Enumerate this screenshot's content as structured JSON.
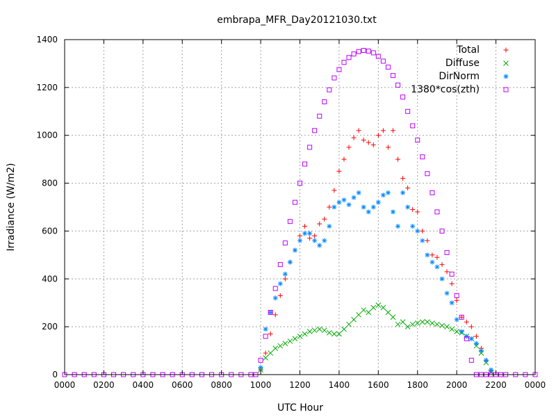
{
  "chart_data": {
    "type": "scatter",
    "title": "embrapa_MFR_Day20121030.txt",
    "xlabel": "UTC Hour",
    "ylabel": "Irradiance (W/m2)",
    "xlim": [
      0,
      24
    ],
    "ylim": [
      0,
      1400
    ],
    "x_ticks": [
      {
        "value": 0,
        "label": "0000"
      },
      {
        "value": 2,
        "label": "0200"
      },
      {
        "value": 4,
        "label": "0400"
      },
      {
        "value": 6,
        "label": "0600"
      },
      {
        "value": 8,
        "label": "0800"
      },
      {
        "value": 10,
        "label": "1000"
      },
      {
        "value": 12,
        "label": "1200"
      },
      {
        "value": 14,
        "label": "1400"
      },
      {
        "value": 16,
        "label": "1600"
      },
      {
        "value": 18,
        "label": "1800"
      },
      {
        "value": 20,
        "label": "2000"
      },
      {
        "value": 22,
        "label": "2200"
      },
      {
        "value": 24,
        "label": "0000"
      }
    ],
    "y_ticks": [
      0,
      200,
      400,
      600,
      800,
      1000,
      1200,
      1400
    ],
    "grid": true,
    "legend_position": "top-right",
    "series": [
      {
        "name": "Total",
        "marker": "plus",
        "color": "#ff0000",
        "x": [
          10.0,
          10.25,
          10.5,
          10.75,
          11.0,
          11.25,
          11.5,
          11.75,
          12.0,
          12.25,
          12.5,
          12.75,
          13.0,
          13.25,
          13.5,
          13.75,
          14.0,
          14.25,
          14.5,
          14.75,
          15.0,
          15.25,
          15.5,
          15.75,
          16.0,
          16.25,
          16.5,
          16.75,
          17.0,
          17.25,
          17.5,
          17.75,
          18.0,
          18.25,
          18.5,
          18.75,
          19.0,
          19.25,
          19.5,
          19.75,
          20.0,
          20.25,
          20.5,
          20.75,
          21.0,
          21.25,
          21.5,
          21.75
        ],
        "y": [
          20,
          90,
          170,
          250,
          330,
          400,
          470,
          520,
          580,
          620,
          570,
          580,
          630,
          650,
          700,
          770,
          850,
          900,
          950,
          990,
          1020,
          980,
          970,
          960,
          1000,
          1020,
          950,
          1020,
          900,
          820,
          780,
          690,
          680,
          600,
          560,
          500,
          490,
          460,
          430,
          380,
          310,
          240,
          220,
          200,
          160,
          110,
          60,
          15
        ]
      },
      {
        "name": "Diffuse",
        "marker": "cross",
        "color": "#00aa00",
        "x": [
          10.0,
          10.25,
          10.5,
          10.75,
          11.0,
          11.25,
          11.5,
          11.75,
          12.0,
          12.25,
          12.5,
          12.75,
          13.0,
          13.25,
          13.5,
          13.75,
          14.0,
          14.25,
          14.5,
          14.75,
          15.0,
          15.25,
          15.5,
          15.75,
          16.0,
          16.25,
          16.5,
          16.75,
          17.0,
          17.25,
          17.5,
          17.75,
          18.0,
          18.25,
          18.5,
          18.75,
          19.0,
          19.25,
          19.5,
          19.75,
          20.0,
          20.25,
          20.5,
          20.75,
          21.0,
          21.25,
          21.5,
          21.75
        ],
        "y": [
          20,
          70,
          90,
          110,
          120,
          130,
          140,
          150,
          160,
          170,
          180,
          185,
          190,
          185,
          175,
          170,
          170,
          190,
          210,
          230,
          250,
          270,
          260,
          280,
          290,
          280,
          260,
          240,
          210,
          220,
          200,
          210,
          215,
          220,
          220,
          215,
          210,
          205,
          200,
          190,
          180,
          175,
          160,
          150,
          120,
          90,
          50,
          10
        ]
      },
      {
        "name": "DirNorm",
        "marker": "star",
        "color": "#0088ff",
        "x": [
          10.0,
          10.25,
          10.5,
          10.75,
          11.0,
          11.25,
          11.5,
          11.75,
          12.0,
          12.25,
          12.5,
          12.75,
          13.0,
          13.25,
          13.5,
          13.75,
          14.0,
          14.25,
          14.5,
          14.75,
          15.0,
          15.25,
          15.5,
          15.75,
          16.0,
          16.25,
          16.5,
          16.75,
          17.0,
          17.25,
          17.5,
          17.75,
          18.0,
          18.25,
          18.5,
          18.75,
          19.0,
          19.25,
          19.5,
          19.75,
          20.0,
          20.25,
          20.5,
          20.75,
          21.0,
          21.25,
          21.5,
          21.75
        ],
        "y": [
          30,
          190,
          260,
          320,
          380,
          420,
          470,
          520,
          560,
          590,
          590,
          560,
          540,
          560,
          620,
          700,
          720,
          730,
          710,
          740,
          760,
          700,
          680,
          700,
          720,
          750,
          760,
          680,
          620,
          760,
          700,
          620,
          600,
          560,
          500,
          470,
          450,
          400,
          340,
          300,
          230,
          180,
          160,
          150,
          130,
          100,
          60,
          20
        ]
      },
      {
        "name": "1380*cos(zth)",
        "marker": "square",
        "color": "#bb00ff",
        "x": [
          0,
          0.5,
          1,
          1.5,
          2,
          2.5,
          3,
          3.5,
          4,
          4.5,
          5,
          5.5,
          6,
          6.5,
          7,
          7.5,
          8,
          8.5,
          9,
          9.5,
          9.75,
          10.0,
          10.25,
          10.5,
          10.75,
          11.0,
          11.25,
          11.5,
          11.75,
          12.0,
          12.25,
          12.5,
          12.75,
          13.0,
          13.25,
          13.5,
          13.75,
          14.0,
          14.25,
          14.5,
          14.75,
          15.0,
          15.25,
          15.5,
          15.75,
          16.0,
          16.25,
          16.5,
          16.75,
          17.0,
          17.25,
          17.5,
          17.75,
          18.0,
          18.25,
          18.5,
          18.75,
          19.0,
          19.25,
          19.5,
          19.75,
          20.0,
          20.25,
          20.5,
          20.75,
          21.0,
          21.25,
          21.5,
          21.75,
          22.0,
          22.25,
          22.5,
          23,
          23.5,
          24
        ],
        "y": [
          0,
          0,
          0,
          0,
          0,
          0,
          0,
          0,
          0,
          0,
          0,
          0,
          0,
          0,
          0,
          0,
          0,
          0,
          0,
          0,
          0,
          60,
          160,
          260,
          360,
          460,
          550,
          640,
          720,
          800,
          880,
          950,
          1020,
          1080,
          1140,
          1190,
          1240,
          1275,
          1305,
          1325,
          1340,
          1350,
          1355,
          1352,
          1345,
          1330,
          1310,
          1285,
          1250,
          1210,
          1160,
          1100,
          1040,
          980,
          910,
          840,
          760,
          680,
          600,
          510,
          420,
          330,
          240,
          150,
          60,
          0,
          0,
          0,
          0,
          0,
          0,
          0,
          0,
          0,
          0
        ]
      }
    ]
  }
}
